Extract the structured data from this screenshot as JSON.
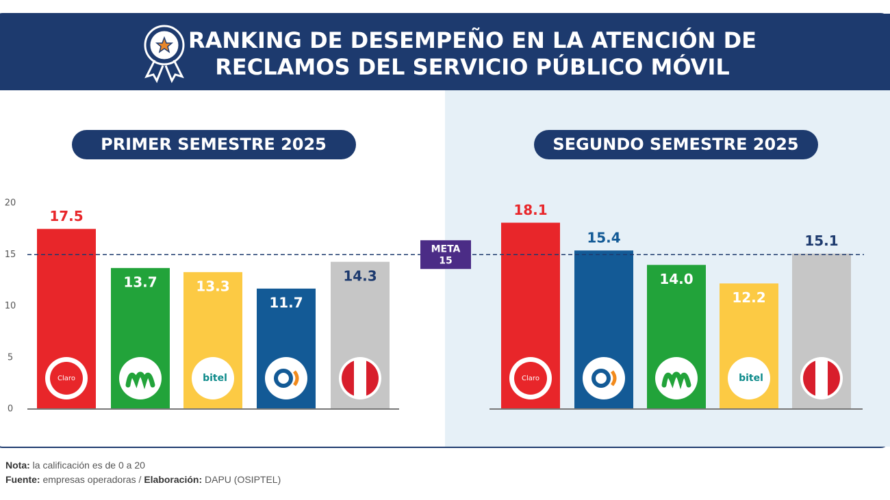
{
  "header": {
    "title": [
      "RANKING DE DESEMPEÑO EN LA ATENCIÓN DE",
      "RECLAMOS DEL SERVICIO PÚBLICO MÓVIL"
    ]
  },
  "meta": {
    "label": "META",
    "value": 15
  },
  "chart_data": [
    {
      "type": "bar",
      "title": "PRIMER SEMESTRE 2025",
      "categories": [
        "Claro",
        null,
        "bitel",
        null,
        null
      ],
      "values": [
        17.5,
        13.7,
        13.3,
        11.7,
        14.3
      ],
      "colors": [
        "#e8262a",
        "#22a33a",
        "#fcca44",
        "#135a96",
        "#c6c6c6"
      ],
      "label_colors": [
        "#e8262a",
        "#ffffff",
        "#ffffff",
        "#ffffff",
        "#1d3a6e"
      ],
      "ylim": [
        0,
        20
      ],
      "yticks": [
        0,
        5,
        10,
        15,
        20
      ]
    },
    {
      "type": "bar",
      "title": "SEGUNDO SEMESTRE 2025",
      "categories": [
        "Claro",
        null,
        null,
        "bitel",
        null
      ],
      "values": [
        18.1,
        15.4,
        14.0,
        12.2,
        15.1
      ],
      "value_labels": [
        "18.1",
        "15.4",
        "14.0",
        "12.2",
        "15.1"
      ],
      "colors": [
        "#e8262a",
        "#135a96",
        "#22a33a",
        "#fcca44",
        "#c6c6c6"
      ],
      "label_colors": [
        "#e8262a",
        "#135a96",
        "#ffffff",
        "#ffffff",
        "#1d3a6e"
      ],
      "ylim": [
        0,
        20
      ]
    }
  ],
  "notes": [
    {
      "label": "Nota:",
      "text": "la calificación es de 0 a 20"
    },
    {
      "label": "Fuente:",
      "text": "empresas operadoras /",
      "label2": "Elaboración:",
      "text2": "DAPU (OSIPTEL)"
    }
  ]
}
